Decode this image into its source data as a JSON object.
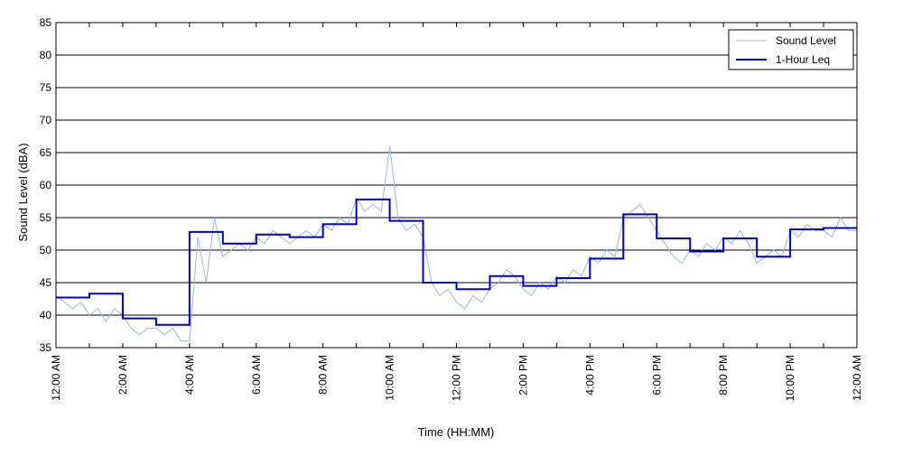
{
  "chart_data": {
    "type": "line",
    "xlabel": "Time (HH:MM)",
    "ylabel": "Sound Level (dBA)",
    "x_unit": "hours",
    "xlim": [
      0,
      24
    ],
    "ylim": [
      35,
      85
    ],
    "y_ticks": [
      35,
      40,
      45,
      50,
      55,
      60,
      65,
      70,
      75,
      80,
      85
    ],
    "x_ticks": [
      {
        "x": 0,
        "label": "12:00 AM"
      },
      {
        "x": 2,
        "label": "2:00 AM"
      },
      {
        "x": 4,
        "label": "4:00 AM"
      },
      {
        "x": 6,
        "label": "6:00 AM"
      },
      {
        "x": 8,
        "label": "8:00 AM"
      },
      {
        "x": 10,
        "label": "10:00 AM"
      },
      {
        "x": 12,
        "label": "12:00 PM"
      },
      {
        "x": 14,
        "label": "2:00 PM"
      },
      {
        "x": 16,
        "label": "4:00 PM"
      },
      {
        "x": 18,
        "label": "6:00 PM"
      },
      {
        "x": 20,
        "label": "8:00 PM"
      },
      {
        "x": 22,
        "label": "10:00 PM"
      },
      {
        "x": 24,
        "label": "12:00 AM"
      }
    ],
    "grid": {
      "horizontal": true,
      "vertical": false
    },
    "legend_position": "top-right",
    "series": [
      {
        "name": "Sound Level",
        "color": "#99b7f0",
        "style": "thin-line",
        "x": [
          0.0,
          0.25,
          0.5,
          0.75,
          1.0,
          1.25,
          1.5,
          1.75,
          2.0,
          2.25,
          2.5,
          2.75,
          3.0,
          3.25,
          3.5,
          3.75,
          4.0,
          4.25,
          4.5,
          4.75,
          5.0,
          5.25,
          5.5,
          5.75,
          6.0,
          6.25,
          6.5,
          6.75,
          7.0,
          7.25,
          7.5,
          7.75,
          8.0,
          8.25,
          8.5,
          8.75,
          9.0,
          9.25,
          9.5,
          9.75,
          10.0,
          10.25,
          10.5,
          10.75,
          11.0,
          11.25,
          11.5,
          11.75,
          12.0,
          12.25,
          12.5,
          12.75,
          13.0,
          13.25,
          13.5,
          13.75,
          14.0,
          14.25,
          14.5,
          14.75,
          15.0,
          15.25,
          15.5,
          15.75,
          16.0,
          16.25,
          16.5,
          16.75,
          17.0,
          17.25,
          17.5,
          17.75,
          18.0,
          18.25,
          18.5,
          18.75,
          19.0,
          19.25,
          19.5,
          19.75,
          20.0,
          20.25,
          20.5,
          20.75,
          21.0,
          21.25,
          21.5,
          21.75,
          22.0,
          22.25,
          22.5,
          22.75,
          23.0,
          23.25,
          23.5,
          23.75,
          24.0
        ],
        "values": [
          43,
          42,
          41,
          42,
          40,
          41,
          39,
          41,
          40,
          38,
          37,
          38,
          38,
          37,
          38,
          36,
          36,
          52,
          45,
          55,
          49,
          50,
          51,
          50,
          52,
          51,
          53,
          52,
          51,
          52,
          53,
          52,
          54,
          53,
          55,
          54,
          58,
          56,
          57,
          56,
          66,
          55,
          53,
          54,
          52,
          45,
          43,
          44,
          42,
          41,
          43,
          42,
          44,
          45,
          47,
          46,
          44,
          43,
          45,
          44,
          46,
          45,
          47,
          46,
          49,
          48,
          50,
          49,
          55,
          56,
          57,
          55,
          53,
          51,
          49,
          48,
          50,
          49,
          51,
          50,
          52,
          51,
          53,
          51,
          48,
          49,
          50,
          49,
          53,
          52,
          54,
          53,
          53,
          52,
          55,
          53,
          53
        ]
      },
      {
        "name": "1-Hour Leq",
        "color": "#0000cc",
        "style": "step",
        "x": [
          0,
          1,
          2,
          3,
          4,
          5,
          6,
          7,
          8,
          9,
          10,
          11,
          12,
          13,
          14,
          15,
          16,
          17,
          18,
          19,
          20,
          21,
          22,
          23
        ],
        "values": [
          42.7,
          43.3,
          39.5,
          38.5,
          52.8,
          51.0,
          52.4,
          52.0,
          54.0,
          57.8,
          54.5,
          45.0,
          44.0,
          46.0,
          44.5,
          45.7,
          48.7,
          55.5,
          51.8,
          49.8,
          51.8,
          49.0,
          53.2,
          53.4
        ]
      }
    ]
  }
}
